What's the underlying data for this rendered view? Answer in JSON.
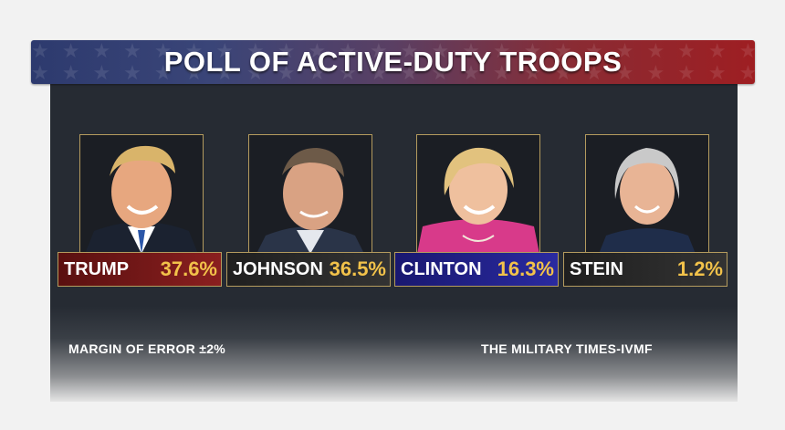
{
  "title": "POLL OF ACTIVE-DUTY TROOPS",
  "candidates": [
    {
      "name": "TRUMP",
      "percent": "37.6%",
      "label_color": "#7a1a1a"
    },
    {
      "name": "JOHNSON",
      "percent": "36.5%",
      "label_color": "#2b2b2b"
    },
    {
      "name": "CLINTON",
      "percent": "16.3%",
      "label_color": "#1f1e78"
    },
    {
      "name": "STEIN",
      "percent": "1.2%",
      "label_color": "#2b2b2b"
    }
  ],
  "footer": {
    "margin_of_error": "MARGIN OF ERROR ±2%",
    "source": "THE MILITARY TIMES-IVMF"
  }
}
